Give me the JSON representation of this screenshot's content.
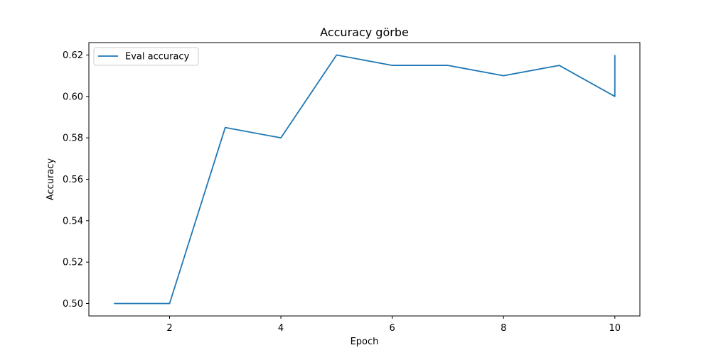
{
  "chart_data": {
    "type": "line",
    "title": "Accuracy görbe",
    "xlabel": "Epoch",
    "ylabel": "Accuracy",
    "xlim": [
      0.55,
      10.45
    ],
    "ylim": [
      0.494,
      0.626
    ],
    "xticks": [
      2,
      4,
      6,
      8,
      10
    ],
    "yticks": [
      0.5,
      0.52,
      0.54,
      0.56,
      0.58,
      0.6,
      0.62
    ],
    "grid": false,
    "legend_position": "top-left",
    "series": [
      {
        "name": "Eval accuracy",
        "color": "#1f77b4",
        "x": [
          1,
          2,
          3,
          4,
          5,
          6,
          7,
          8,
          9,
          10,
          10
        ],
        "y": [
          0.5,
          0.5,
          0.585,
          0.58,
          0.62,
          0.615,
          0.615,
          0.61,
          0.615,
          0.6,
          0.62
        ]
      }
    ]
  }
}
